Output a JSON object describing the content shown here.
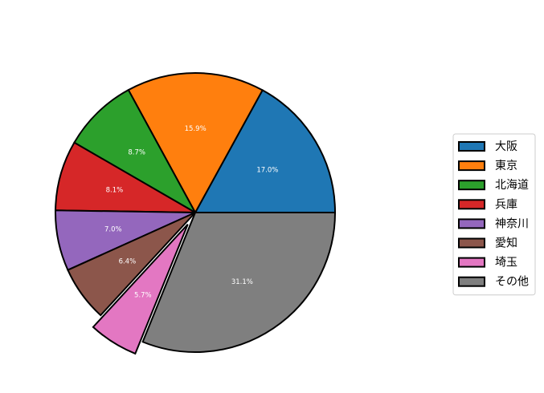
{
  "chart_data": {
    "type": "pie",
    "title": "",
    "start_angle_deg": 0,
    "direction": "counterclockwise",
    "slices": [
      {
        "label": "大阪",
        "value": 17.0,
        "pct_text": "17.0%",
        "color": "#1f77b4",
        "explode": 0
      },
      {
        "label": "東京",
        "value": 15.9,
        "pct_text": "15.9%",
        "color": "#ff7f0e",
        "explode": 0
      },
      {
        "label": "北海道",
        "value": 8.7,
        "pct_text": "8.7%",
        "color": "#2ca02c",
        "explode": 0
      },
      {
        "label": "兵庫",
        "value": 8.1,
        "pct_text": "8.1%",
        "color": "#d62728",
        "explode": 0
      },
      {
        "label": "神奈川",
        "value": 7.0,
        "pct_text": "7.0%",
        "color": "#9467bd",
        "explode": 0
      },
      {
        "label": "愛知",
        "value": 6.4,
        "pct_text": "6.4%",
        "color": "#8c564b",
        "explode": 0
      },
      {
        "label": "埼玉",
        "value": 5.7,
        "pct_text": "5.7%",
        "color": "#e377c2",
        "explode": 0.1
      },
      {
        "label": "その他",
        "value": 31.1,
        "pct_text": "31.1%",
        "color": "#7f7f7f",
        "explode": 0
      }
    ],
    "legend_position": "right"
  }
}
